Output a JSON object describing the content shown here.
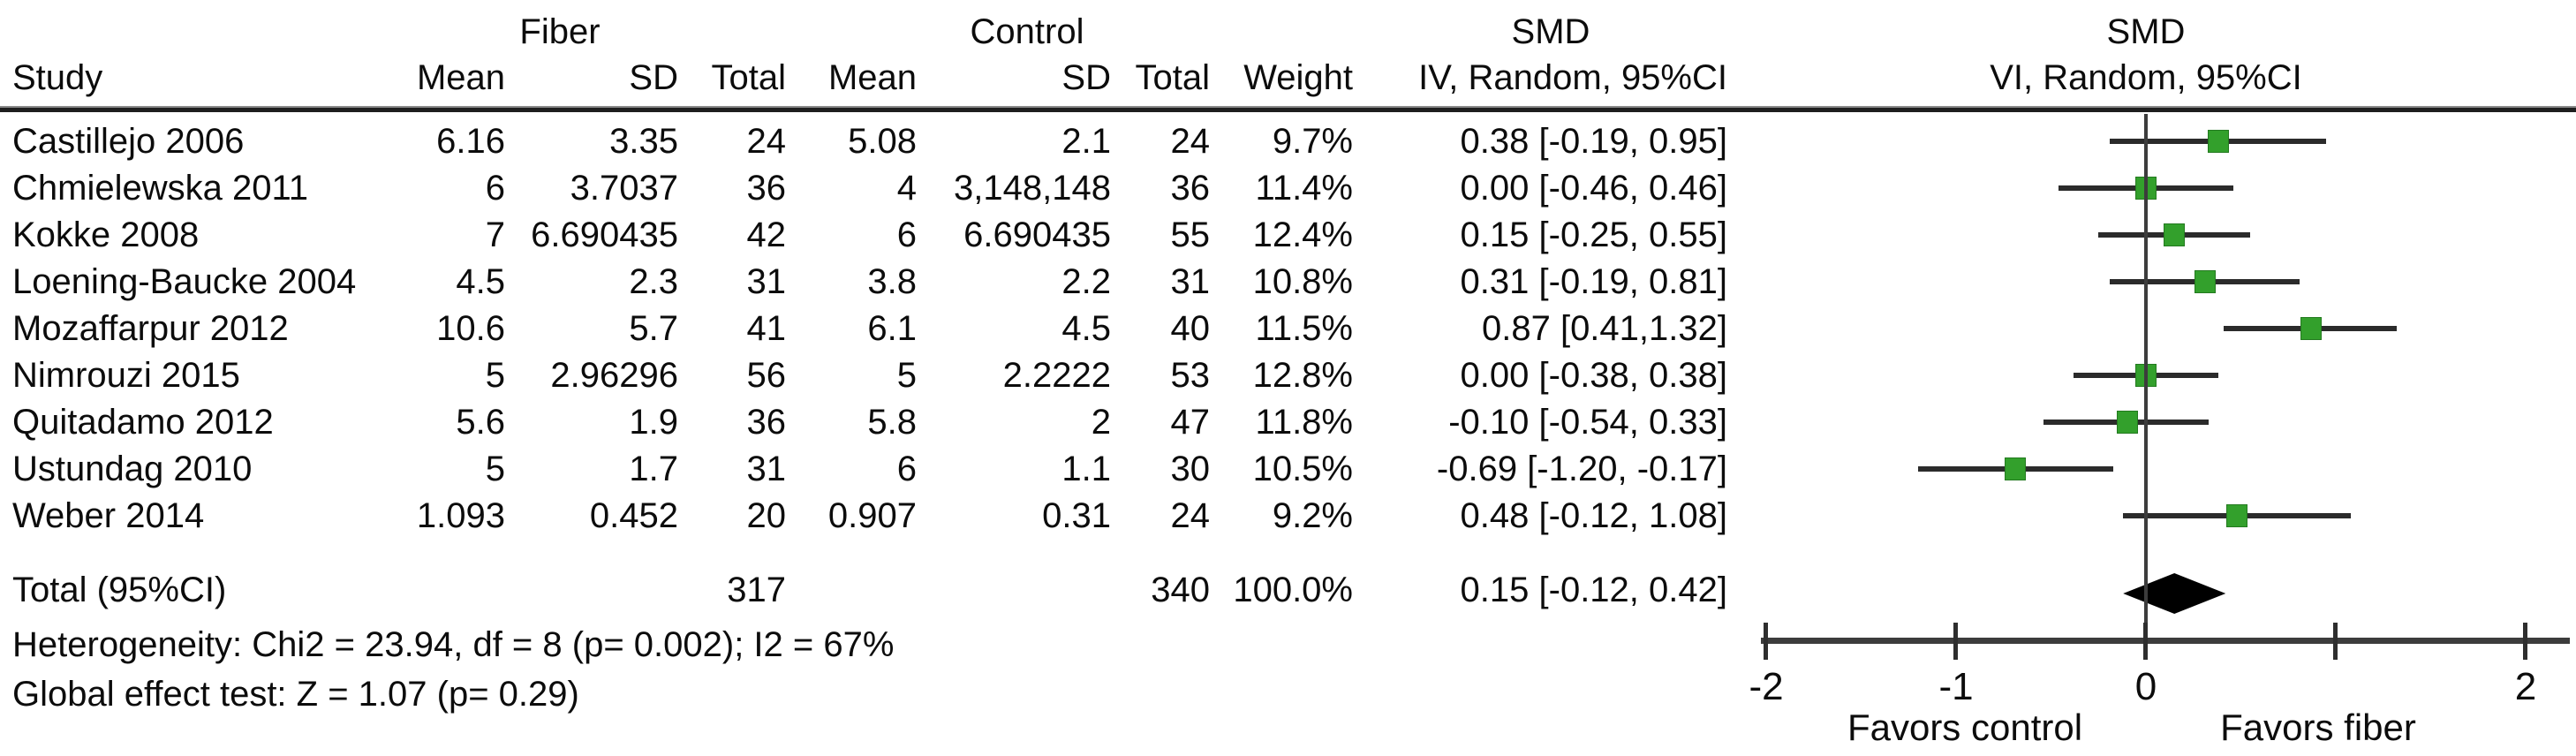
{
  "table": {
    "group_headers": {
      "fiber": "Fiber",
      "control": "Control",
      "smd_left": "SMD",
      "smd_right": "SMD"
    },
    "column_headers": {
      "study": "Study",
      "mean": "Mean",
      "sd": "SD",
      "total": "Total",
      "weight": "Weight",
      "ci_left": "IV, Random, 95%CI",
      "ci_right": "VI, Random, 95%CI"
    },
    "rows": [
      {
        "study": "Castillejo 2006",
        "f_mean": "6.16",
        "f_sd": "3.35",
        "f_total": "24",
        "c_mean": "5.08",
        "c_sd": "2.1",
        "c_total": "24",
        "weight": "9.7%",
        "ci": "0.38 [-0.19, 0.95]",
        "est": 0.38,
        "lo": -0.19,
        "hi": 0.95
      },
      {
        "study": "Chmielewska 2011",
        "f_mean": "6",
        "f_sd": "3.7037",
        "f_total": "36",
        "c_mean": "4",
        "c_sd": "3,148,148",
        "c_total": "36",
        "weight": "11.4%",
        "ci": "0.00 [-0.46, 0.46]",
        "est": 0.0,
        "lo": -0.46,
        "hi": 0.46
      },
      {
        "study": "Kokke 2008",
        "f_mean": "7",
        "f_sd": "6.690435",
        "f_total": "42",
        "c_mean": "6",
        "c_sd": "6.690435",
        "c_total": "55",
        "weight": "12.4%",
        "ci": "0.15 [-0.25, 0.55]",
        "est": 0.15,
        "lo": -0.25,
        "hi": 0.55
      },
      {
        "study": "Loening-Baucke 2004",
        "f_mean": "4.5",
        "f_sd": "2.3",
        "f_total": "31",
        "c_mean": "3.8",
        "c_sd": "2.2",
        "c_total": "31",
        "weight": "10.8%",
        "ci": "0.31 [-0.19, 0.81]",
        "est": 0.31,
        "lo": -0.19,
        "hi": 0.81
      },
      {
        "study": "Mozaffarpur 2012",
        "f_mean": "10.6",
        "f_sd": "5.7",
        "f_total": "41",
        "c_mean": "6.1",
        "c_sd": "4.5",
        "c_total": "40",
        "weight": "11.5%",
        "ci": "0.87 [0.41,1.32]",
        "est": 0.87,
        "lo": 0.41,
        "hi": 1.32
      },
      {
        "study": "Nimrouzi 2015",
        "f_mean": "5",
        "f_sd": "2.96296",
        "f_total": "56",
        "c_mean": "5",
        "c_sd": "2.2222",
        "c_total": "53",
        "weight": "12.8%",
        "ci": "0.00 [-0.38, 0.38]",
        "est": 0.0,
        "lo": -0.38,
        "hi": 0.38
      },
      {
        "study": "Quitadamo 2012",
        "f_mean": "5.6",
        "f_sd": "1.9",
        "f_total": "36",
        "c_mean": "5.8",
        "c_sd": "2",
        "c_total": "47",
        "weight": "11.8%",
        "ci": "-0.10 [-0.54, 0.33]",
        "est": -0.1,
        "lo": -0.54,
        "hi": 0.33
      },
      {
        "study": "Ustundag 2010",
        "f_mean": "5",
        "f_sd": "1.7",
        "f_total": "31",
        "c_mean": "6",
        "c_sd": "1.1",
        "c_total": "30",
        "weight": "10.5%",
        "ci": "-0.69 [-1.20, -0.17]",
        "est": -0.69,
        "lo": -1.2,
        "hi": -0.17
      },
      {
        "study": "Weber 2014",
        "f_mean": "1.093",
        "f_sd": "0.452",
        "f_total": "20",
        "c_mean": "0.907",
        "c_sd": "0.31",
        "c_total": "24",
        "weight": "9.2%",
        "ci": "0.48 [-0.12, 1.08]",
        "est": 0.48,
        "lo": -0.12,
        "hi": 1.08
      }
    ],
    "total_row": {
      "label": "Total (95%CI)",
      "f_total": "317",
      "c_total": "340",
      "weight": "100.0%",
      "ci": "0.15 [-0.12, 0.42]",
      "est": 0.15,
      "lo": -0.12,
      "hi": 0.42
    },
    "footnotes": [
      "Heterogeneity: Chi2 = 23.94, df = 8 (p= 0.002); I2 = 67%",
      "Global effect test: Z = 1.07 (p= 0.29)"
    ]
  },
  "plot": {
    "axis_ticks": [
      {
        "value": -2,
        "label": "-2"
      },
      {
        "value": -1,
        "label": "-1"
      },
      {
        "value": 0,
        "label": "0"
      },
      {
        "value": 1,
        "label": ""
      },
      {
        "value": 2,
        "label": "2"
      }
    ],
    "favors_left": "Favors control",
    "favors_right": "Favors fiber",
    "colors": {
      "marker": "#33a02c",
      "ci_line": "#2b2b2b",
      "axis": "#3c3c3c",
      "diamond": "#000000"
    }
  },
  "chart_data": {
    "type": "scatter",
    "subtype": "forest-plot",
    "effect_measure": "SMD",
    "model": "Random, 95%CI",
    "x_axis": {
      "range": [
        -2,
        2
      ],
      "ticks": [
        -2,
        -1,
        0,
        1,
        2
      ],
      "tick_labels": [
        "-2",
        "-1",
        "0",
        "",
        "2"
      ]
    },
    "studies": [
      {
        "name": "Castillejo 2006",
        "smd": 0.38,
        "ci": [
          -0.19,
          0.95
        ],
        "weight_pct": 9.7
      },
      {
        "name": "Chmielewska 2011",
        "smd": 0.0,
        "ci": [
          -0.46,
          0.46
        ],
        "weight_pct": 11.4
      },
      {
        "name": "Kokke 2008",
        "smd": 0.15,
        "ci": [
          -0.25,
          0.55
        ],
        "weight_pct": 12.4
      },
      {
        "name": "Loening-Baucke 2004",
        "smd": 0.31,
        "ci": [
          -0.19,
          0.81
        ],
        "weight_pct": 10.8
      },
      {
        "name": "Mozaffarpur 2012",
        "smd": 0.87,
        "ci": [
          0.41,
          1.32
        ],
        "weight_pct": 11.5
      },
      {
        "name": "Nimrouzi 2015",
        "smd": 0.0,
        "ci": [
          -0.38,
          0.38
        ],
        "weight_pct": 12.8
      },
      {
        "name": "Quitadamo 2012",
        "smd": -0.1,
        "ci": [
          -0.54,
          0.33
        ],
        "weight_pct": 11.8
      },
      {
        "name": "Ustundag 2010",
        "smd": -0.69,
        "ci": [
          -1.2,
          -0.17
        ],
        "weight_pct": 10.5
      },
      {
        "name": "Weber 2014",
        "smd": 0.48,
        "ci": [
          -0.12,
          1.08
        ],
        "weight_pct": 9.2
      }
    ],
    "summary": {
      "name": "Total (95%CI)",
      "smd": 0.15,
      "ci": [
        -0.12,
        0.42
      ],
      "weight_pct": 100.0,
      "fiber_total_n": 317,
      "control_total_n": 340
    },
    "heterogeneity": {
      "chi2": 23.94,
      "df": 8,
      "p": 0.002,
      "i2_pct": 67
    },
    "overall_effect": {
      "z": 1.07,
      "p": 0.29
    },
    "annotations": {
      "favors_left": "Favors control",
      "favors_right": "Favors fiber"
    },
    "legend_position": "none",
    "grid": false
  }
}
